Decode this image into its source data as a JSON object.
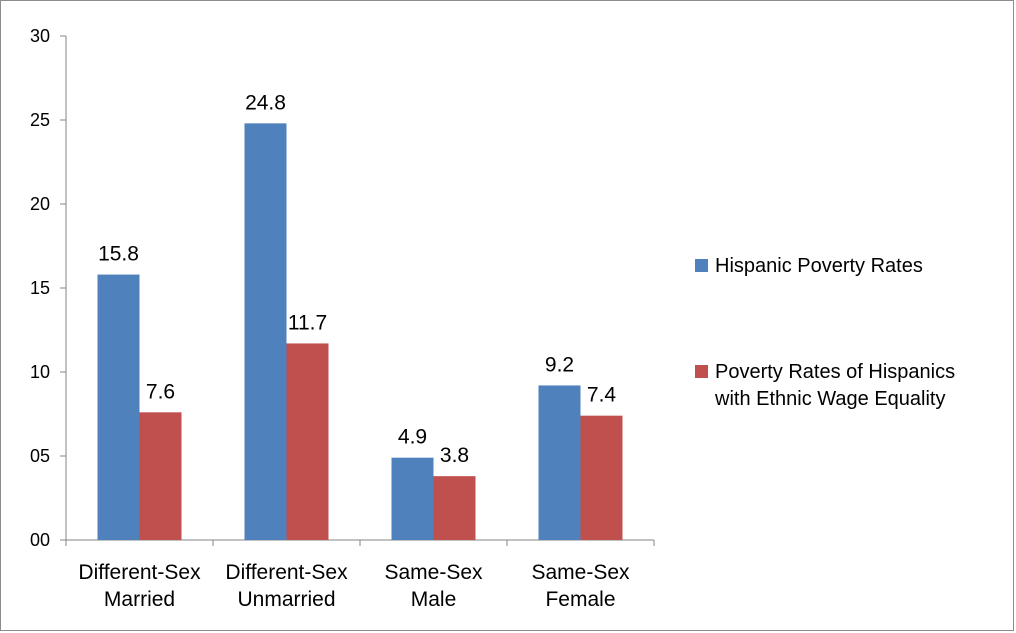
{
  "chart_data": {
    "type": "bar",
    "categories": [
      [
        "Different-Sex",
        "Married"
      ],
      [
        "Different-Sex",
        "Unmarried"
      ],
      [
        "Same-Sex",
        "Male"
      ],
      [
        "Same-Sex",
        "Female"
      ]
    ],
    "series": [
      {
        "name": "Hispanic Poverty Rates",
        "color": "#4f81bd",
        "values": [
          15.8,
          24.8,
          4.9,
          9.2
        ],
        "labels": [
          "15.8",
          "24.8",
          "4.9",
          "9.2"
        ]
      },
      {
        "name": "Poverty Rates of Hispanics with Ethnic Wage Equality",
        "legend_lines": [
          "Poverty Rates of Hispanics",
          "with Ethnic Wage Equality"
        ],
        "color": "#c0504d",
        "values": [
          7.6,
          11.7,
          3.8,
          7.4
        ],
        "labels": [
          "7.6",
          "11.7",
          "3.8",
          "7.4"
        ]
      }
    ],
    "ylim": [
      0,
      30
    ],
    "yticks": [
      0,
      5,
      10,
      15,
      20,
      25,
      30
    ],
    "ytick_labels": [
      "00",
      "05",
      "10",
      "15",
      "20",
      "25",
      "30"
    ],
    "title": "",
    "xlabel": "",
    "ylabel": "",
    "grid": false,
    "legend_position": "right"
  }
}
